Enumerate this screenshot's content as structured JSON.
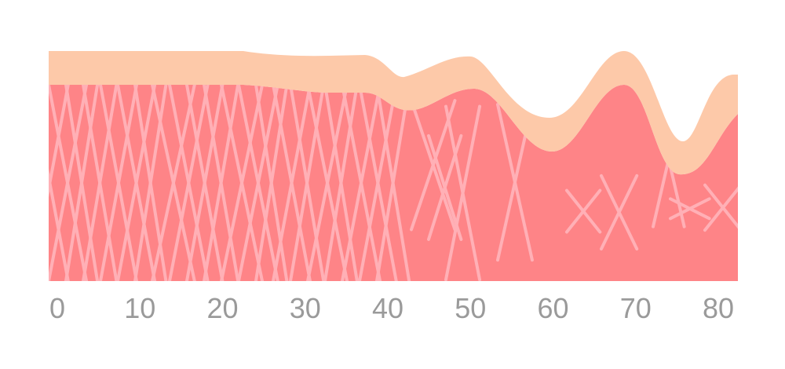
{
  "axis_labels": [
    0,
    10,
    20,
    30,
    40,
    50,
    60,
    70,
    80
  ]
}
